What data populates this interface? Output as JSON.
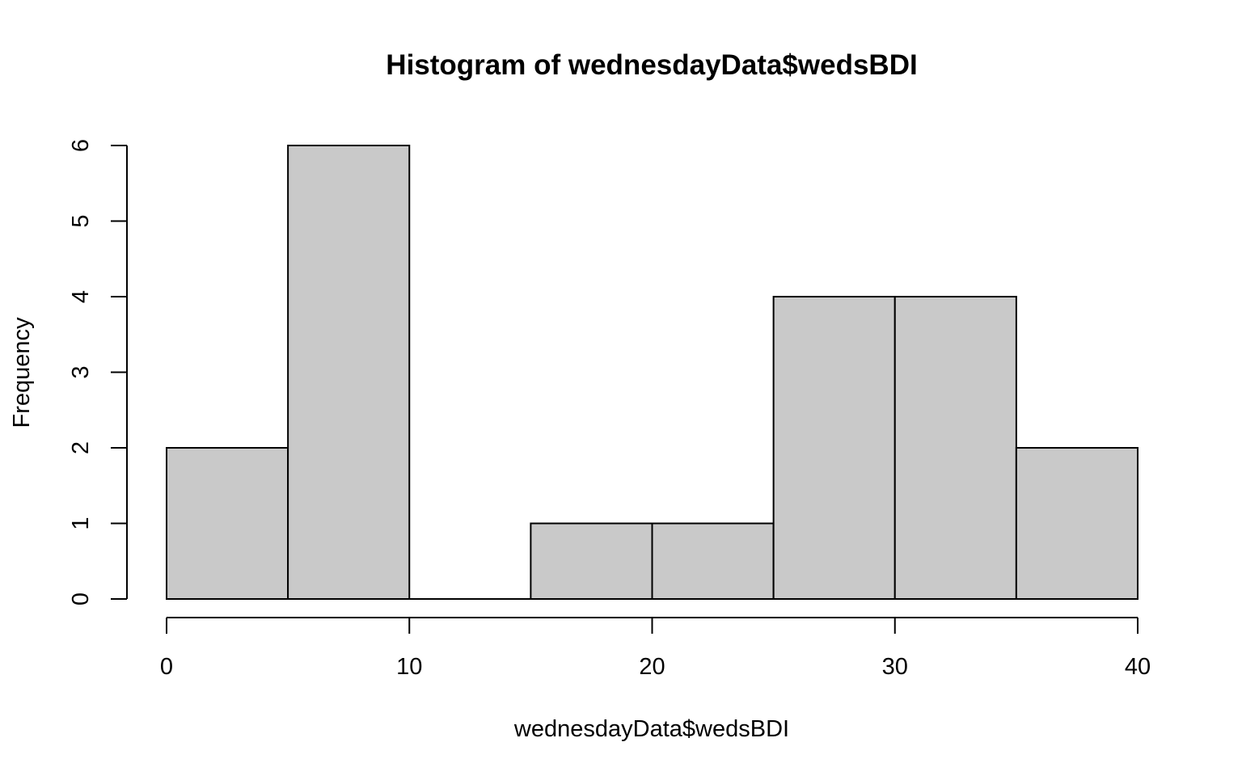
{
  "chart_data": {
    "type": "bar",
    "title": "Histogram of wednesdayData$wedsBDI",
    "xlabel": "wednesdayData$wedsBDI",
    "ylabel": "Frequency",
    "bins": [
      {
        "start": 0,
        "end": 5,
        "count": 2
      },
      {
        "start": 5,
        "end": 10,
        "count": 6
      },
      {
        "start": 10,
        "end": 15,
        "count": 0
      },
      {
        "start": 15,
        "end": 20,
        "count": 1
      },
      {
        "start": 20,
        "end": 25,
        "count": 1
      },
      {
        "start": 25,
        "end": 30,
        "count": 4
      },
      {
        "start": 30,
        "end": 35,
        "count": 4
      },
      {
        "start": 35,
        "end": 40,
        "count": 2
      }
    ],
    "xlim": [
      0,
      40
    ],
    "ylim": [
      0,
      6
    ],
    "x_ticks": [
      0,
      10,
      20,
      30,
      40
    ],
    "y_ticks": [
      0,
      1,
      2,
      3,
      4,
      5,
      6
    ],
    "bar_color": "#c9c9c9",
    "edge_color": "#000000",
    "grid": false,
    "legend": "none"
  }
}
